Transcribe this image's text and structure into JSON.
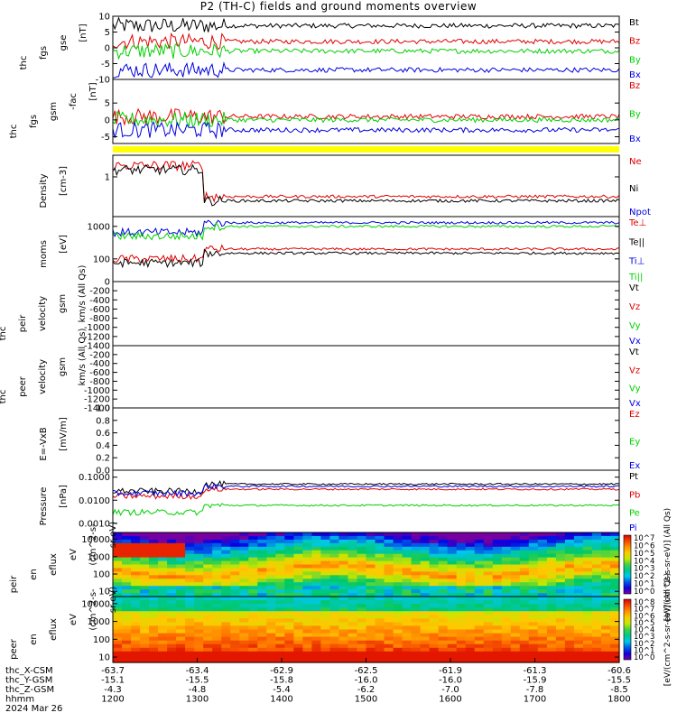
{
  "title": "P2 (TH-C) fields and ground moments overview",
  "chart_data": [
    {
      "type": "line",
      "ylabel": [
        "thc",
        "fgs",
        "gse",
        "[nT]"
      ],
      "ylim": [
        -10,
        10
      ],
      "yticks": [
        10,
        5,
        0,
        -5,
        -10
      ],
      "series": [
        {
          "name": "Bt",
          "color": "#000000",
          "level": 7
        },
        {
          "name": "Bz",
          "color": "#e00000",
          "level": 2
        },
        {
          "name": "By",
          "color": "#00d000",
          "level": -1
        },
        {
          "name": "Bx",
          "color": "#0000e0",
          "level": -7
        }
      ]
    },
    {
      "type": "line",
      "ylabel": [
        "thc",
        "fgs",
        "gsm",
        "-fac",
        "[nT]"
      ],
      "ylim": [
        -7,
        12
      ],
      "yticks": [
        5,
        0,
        -5
      ],
      "series": [
        {
          "name": "Bz",
          "color": "#e00000",
          "level": 1
        },
        {
          "name": "By",
          "color": "#00d000",
          "level": 0
        },
        {
          "name": "Bx",
          "color": "#0000e0",
          "level": -3
        }
      ],
      "quality_flag_color": "#ffff00"
    },
    {
      "type": "line",
      "ylabel": [
        "Density",
        "[cm-3]"
      ],
      "yscale": "log",
      "ylim": [
        0.1,
        3.5
      ],
      "yticks": [
        1
      ],
      "series": [
        {
          "name": "Ne",
          "color": "#e00000",
          "level": 0.32
        },
        {
          "name": "Ni",
          "color": "#000000",
          "level": 0.25
        },
        {
          "name": "Npot",
          "color": "#0000e0",
          "level": null
        }
      ]
    },
    {
      "type": "line",
      "ylabel": [
        "moms",
        "[eV]"
      ],
      "yscale": "log",
      "ylim": [
        20,
        2000
      ],
      "yticks": [
        1000,
        100
      ],
      "series": [
        {
          "name": "Te⊥",
          "color": "#e00000",
          "level": 200
        },
        {
          "name": "Te||",
          "color": "#000000",
          "level": 150
        },
        {
          "name": "Ti⊥",
          "color": "#0000e0",
          "level": 1300
        },
        {
          "name": "Ti||",
          "color": "#00d000",
          "level": 1000
        }
      ]
    },
    {
      "type": "line",
      "ylabel": [
        "thc",
        "peir",
        "velocity",
        "gsm",
        "km/s (All Qs)"
      ],
      "ylim": [
        -1400,
        0
      ],
      "yticks": [
        0,
        -200,
        -400,
        -600,
        -800,
        -1000,
        -1200,
        -1400
      ],
      "series": [
        {
          "name": "Vt",
          "color": "#000000"
        },
        {
          "name": "Vz",
          "color": "#e00000"
        },
        {
          "name": "Vy",
          "color": "#00d000"
        },
        {
          "name": "Vx",
          "color": "#0000e0"
        }
      ]
    },
    {
      "type": "line",
      "ylabel": [
        "thc",
        "peer",
        "velocity",
        "gsm",
        "km/s (All Qs)"
      ],
      "ylim": [
        -1400,
        0
      ],
      "yticks": [
        -200,
        -400,
        -600,
        -800,
        -1000,
        -1200,
        -1400
      ],
      "series": [
        {
          "name": "Vt",
          "color": "#000000"
        },
        {
          "name": "Vz",
          "color": "#e00000"
        },
        {
          "name": "Vy",
          "color": "#00d000"
        },
        {
          "name": "Vx",
          "color": "#0000e0"
        }
      ]
    },
    {
      "type": "line",
      "ylabel": [
        "E=-VxB",
        "[mV/m]"
      ],
      "ylim": [
        0,
        1
      ],
      "yticks": [
        1.0,
        0.8,
        0.6,
        0.4,
        0.2,
        0.0
      ],
      "series": [
        {
          "name": "Ez",
          "color": "#e00000"
        },
        {
          "name": "Ey",
          "color": "#00d000"
        },
        {
          "name": "Ex",
          "color": "#0000e0"
        }
      ]
    },
    {
      "type": "line",
      "ylabel": [
        "Pressure",
        "[nPa]"
      ],
      "yscale": "log",
      "ylim": [
        0.0004,
        0.2
      ],
      "yticks": [
        0.1,
        0.01,
        0.001
      ],
      "ytick_labels": [
        "0.1000",
        "0.0100",
        "0.0010"
      ],
      "series": [
        {
          "name": "Pt",
          "color": "#000000",
          "level": 0.05
        },
        {
          "name": "Pb",
          "color": "#e00000",
          "level": 0.03
        },
        {
          "name": "Pe",
          "color": "#00d000",
          "level": 0.006
        },
        {
          "name": "Pi",
          "color": "#0000e0",
          "level": 0.04
        }
      ]
    },
    {
      "type": "heatmap",
      "ylabel": [
        "thc",
        "peir",
        "en",
        "eflux",
        "eV",
        "(cm^2-s-",
        "sr-eV)"
      ],
      "yscale": "log",
      "ylim": [
        5,
        25000
      ],
      "yticks": [
        10000,
        1000,
        100,
        10
      ],
      "colorbar_label": "[eV/(cm^2-s-sr-eV)] (All Qs)",
      "colorbar_ticks": [
        "10^7",
        "10^6",
        "10^5",
        "10^4",
        "10^3",
        "10^2",
        "10^1",
        "10^0"
      ]
    },
    {
      "type": "heatmap",
      "ylabel": [
        "thc",
        "peer",
        "en",
        "eflux",
        "eV",
        "(cm^2-s-",
        "sr-eV)"
      ],
      "yscale": "log",
      "ylim": [
        5,
        25000
      ],
      "yticks": [
        10000,
        1000,
        100,
        10
      ],
      "colorbar_label": "[eV/(cm^2-s-sr-eV)] (All Qs)",
      "colorbar_ticks": [
        "10^8",
        "10^7",
        "10^6",
        "10^5",
        "10^4",
        "10^3",
        "10^2",
        "10^1",
        "10^0"
      ]
    }
  ],
  "time_axis": {
    "range": [
      1200,
      1800
    ],
    "rows": [
      {
        "label": "thc_X-CSM",
        "values": [
          "-63.7",
          "-63.4",
          "-62.9",
          "-62.5",
          "-61.9",
          "-61.3",
          "-60.6"
        ]
      },
      {
        "label": "thc_Y-GSM",
        "values": [
          "-15.1",
          "-15.5",
          "-15.8",
          "-16.0",
          "-16.0",
          "-15.9",
          "-15.5"
        ]
      },
      {
        "label": "thc_Z-GSM",
        "values": [
          "-4.3",
          "-4.8",
          "-5.4",
          "-6.2",
          "-7.0",
          "-7.8",
          "-8.5"
        ]
      },
      {
        "label": "hhmm",
        "values": [
          "1200",
          "1300",
          "1400",
          "1500",
          "1600",
          "1700",
          "1800"
        ]
      }
    ],
    "date": "2024 Mar 26"
  }
}
